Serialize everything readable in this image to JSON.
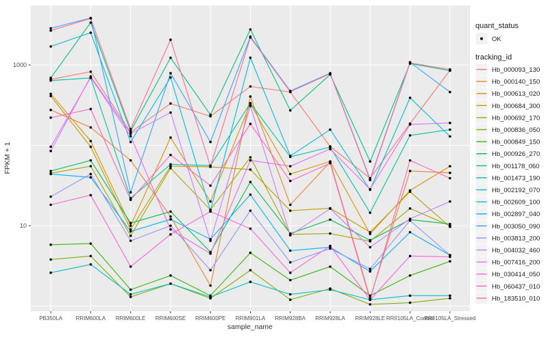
{
  "figure": {
    "background": "#FFFFFF",
    "panel_background": "#EBEBEB",
    "gridline_color": "#FFFFFF",
    "point_color": "#000000"
  },
  "chart_data": {
    "type": "line",
    "title": "",
    "xlabel": "sample_name",
    "ylabel": "FPKM + 1",
    "y_scale": "log10",
    "ylim": [
      0.85,
      5500
    ],
    "y_ticks": [
      {
        "label": "1000",
        "value": 1000
      },
      {
        "label": "10",
        "value": 10
      }
    ],
    "y_gridlines": [
      1,
      10,
      100,
      1000
    ],
    "grid": "on",
    "legend_position": "right",
    "categories": [
      "PB350LA",
      "RRIM600LA",
      "RRIM600LE",
      "RRIM600SE",
      "RRIM600PE",
      "RRIM901LA",
      "RRIM928BA",
      "RRIM928LA",
      "RRIM928LE",
      "RRII105LA_Control",
      "RRII105LA_Stressed"
    ],
    "series": [
      {
        "name": "Hb_000093_130",
        "color": "#F8766D",
        "values": [
          660,
          825,
          145,
          332,
          230,
          540,
          460,
          97,
          39,
          186,
          860
        ]
      },
      {
        "name": "Hb_000140_150",
        "color": "#EA8331",
        "values": [
          276,
          167,
          65,
          13,
          1.8,
          405,
          18.2,
          62,
          1.25,
          48,
          45.5
        ]
      },
      {
        "name": "Hb_000613_020",
        "color": "#D89000",
        "values": [
          437,
          113,
          10,
          125,
          20,
          330,
          44,
          63,
          7.9,
          27.5,
          55
        ]
      },
      {
        "name": "Hb_000684_300",
        "color": "#C09B00",
        "values": [
          410,
          96,
          9,
          55,
          54,
          50,
          15.4,
          16.5,
          8.3,
          26.5,
          9.7
        ]
      },
      {
        "name": "Hb_000692_170",
        "color": "#A3A500",
        "values": [
          45,
          55,
          7.5,
          52,
          15.8,
          71,
          7.8,
          8,
          6.4,
          16.4,
          10
        ]
      },
      {
        "name": "Hb_000836_050",
        "color": "#7CAE00",
        "values": [
          3.8,
          4.2,
          1.3,
          1.9,
          1.25,
          2.8,
          1.2,
          1.65,
          1.05,
          1.1,
          1.25
        ]
      },
      {
        "name": "Hb_000849_150",
        "color": "#39B600",
        "values": [
          5.8,
          6,
          1.6,
          2.4,
          1.35,
          4.6,
          2.1,
          3.1,
          1.35,
          2.4,
          3.6
        ]
      },
      {
        "name": "Hb_000926_270",
        "color": "#00BB4E",
        "values": [
          48,
          65,
          10.8,
          15,
          4.7,
          35,
          8,
          11.9,
          6.6,
          11.9,
          10.5
        ]
      },
      {
        "name": "Hb_001178_060",
        "color": "#00BF7D",
        "values": [
          690,
          3370,
          150,
          1230,
          240,
          2770,
          272,
          760,
          63,
          1040,
          850
        ]
      },
      {
        "name": "Hb_001473_190",
        "color": "#00C1A3",
        "values": [
          640,
          690,
          22,
          58,
          56,
          335,
          72,
          95,
          14.5,
          133,
          157
        ]
      },
      {
        "name": "Hb_002192_070",
        "color": "#00BFC4",
        "values": [
          2.6,
          3.3,
          1.4,
          1.9,
          1.3,
          2,
          1.4,
          1.6,
          1.2,
          1.35,
          1.35
        ]
      },
      {
        "name": "Hb_002609_100",
        "color": "#00BAE0",
        "values": [
          1700,
          2520,
          110,
          700,
          15.4,
          1230,
          74,
          157,
          28,
          390,
          129
        ]
      },
      {
        "name": "Hb_002897_040",
        "color": "#00B0F6",
        "values": [
          44,
          40,
          8.5,
          12,
          6.8,
          24.4,
          4.9,
          5.4,
          2.7,
          8.3,
          4.3
        ]
      },
      {
        "name": "Hb_003050_090",
        "color": "#35A2FF",
        "values": [
          2860,
          3840,
          26,
          790,
          110,
          2250,
          475,
          790,
          38,
          1080,
          460
        ]
      },
      {
        "name": "Hb_003813_200",
        "color": "#9590FF",
        "values": [
          23,
          44,
          6.5,
          10,
          2.8,
          15.4,
          3.5,
          5.2,
          2.9,
          11.6,
          4.3
        ]
      },
      {
        "name": "Hb_004032_460",
        "color": "#C77CFF",
        "values": [
          85,
          720,
          140,
          256,
          6.5,
          310,
          7.6,
          16.3,
          5.4,
          12.2,
          20
        ]
      },
      {
        "name": "Hb_007416_200",
        "color": "#E76BF3",
        "values": [
          96,
          700,
          130,
          9,
          4.5,
          65,
          55,
          90,
          28.5,
          182,
          190
        ]
      },
      {
        "name": "Hb_030414_050",
        "color": "#FA62DB",
        "values": [
          18.2,
          24,
          3.1,
          7.8,
          15,
          9.2,
          2.6,
          5.6,
          1.2,
          4.2,
          4.1
        ]
      },
      {
        "name": "Hb_060437_010",
        "color": "#FF62BC",
        "values": [
          221,
          283,
          21,
          76,
          31.5,
          185,
          36,
          60,
          1.2,
          65,
          39
        ]
      },
      {
        "name": "Hb_183510_010",
        "color": "#FF6A98",
        "values": [
          2680,
          3800,
          160,
          2060,
          55,
          2200,
          465,
          780,
          37,
          1060,
          880
        ]
      }
    ],
    "legend": {
      "quant_status": {
        "title": "quant_status",
        "items": [
          {
            "label": "OK",
            "marker": "point",
            "color": "#000000"
          }
        ]
      },
      "tracking_id": {
        "title": "tracking_id"
      }
    }
  }
}
